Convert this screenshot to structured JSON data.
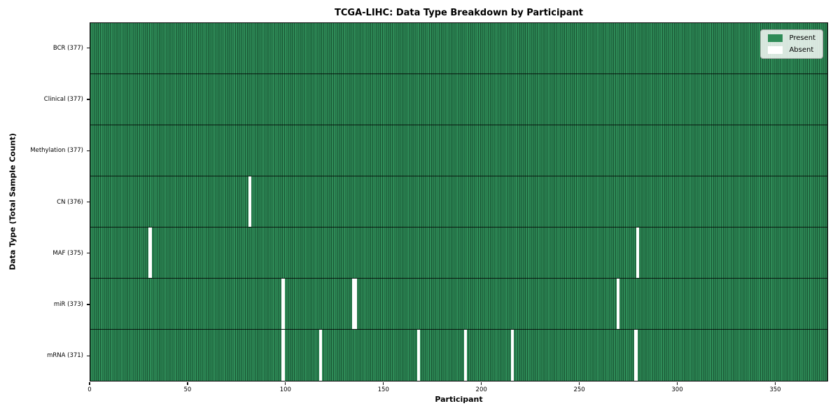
{
  "chart_data": {
    "type": "heatmap",
    "title": "TCGA-LIHC: Data Type Breakdown by Participant",
    "xlabel": "Participant",
    "ylabel": "Data Type (Total Sample Count)",
    "x_ticks": [
      0,
      50,
      100,
      150,
      200,
      250,
      300,
      350
    ],
    "x_max": 377,
    "total_participants": 377,
    "legend_position": "upper right",
    "grid": "cell-edges",
    "rows": [
      {
        "key": "bcr",
        "label": "BCR (377)",
        "data_type": "BCR",
        "present_count": 377,
        "absent_participants": []
      },
      {
        "key": "clinical",
        "label": "Clinical (377)",
        "data_type": "Clinical",
        "present_count": 377,
        "absent_participants": []
      },
      {
        "key": "methylation",
        "label": "Methylation (377)",
        "data_type": "Methylation",
        "present_count": 377,
        "absent_participants": []
      },
      {
        "key": "cn",
        "label": "CN (376)",
        "data_type": "CN",
        "present_count": 376,
        "absent_participants": [
          81
        ]
      },
      {
        "key": "maf",
        "label": "MAF (375)",
        "data_type": "MAF",
        "present_count": 375,
        "absent_participants": [
          30,
          279
        ]
      },
      {
        "key": "mir",
        "label": "miR (373)",
        "data_type": "miR",
        "present_count": 373,
        "absent_participants": [
          98,
          134,
          135,
          269
        ]
      },
      {
        "key": "mrna",
        "label": "mRNA (371)",
        "data_type": "mRNA",
        "present_count": 371,
        "absent_participants": [
          98,
          117,
          167,
          191,
          215,
          278
        ]
      }
    ],
    "legend": [
      {
        "label": "Present",
        "color": "#2e8b57"
      },
      {
        "label": "Absent",
        "color": "#ffffff"
      }
    ],
    "colors": {
      "present": "#2e8b57",
      "absent": "#ffffff",
      "cell_edge": "rgba(5,35,20,0.55)",
      "row_separator": "rgba(0,0,0,0.8)",
      "spine": "#0a0a0a"
    }
  }
}
